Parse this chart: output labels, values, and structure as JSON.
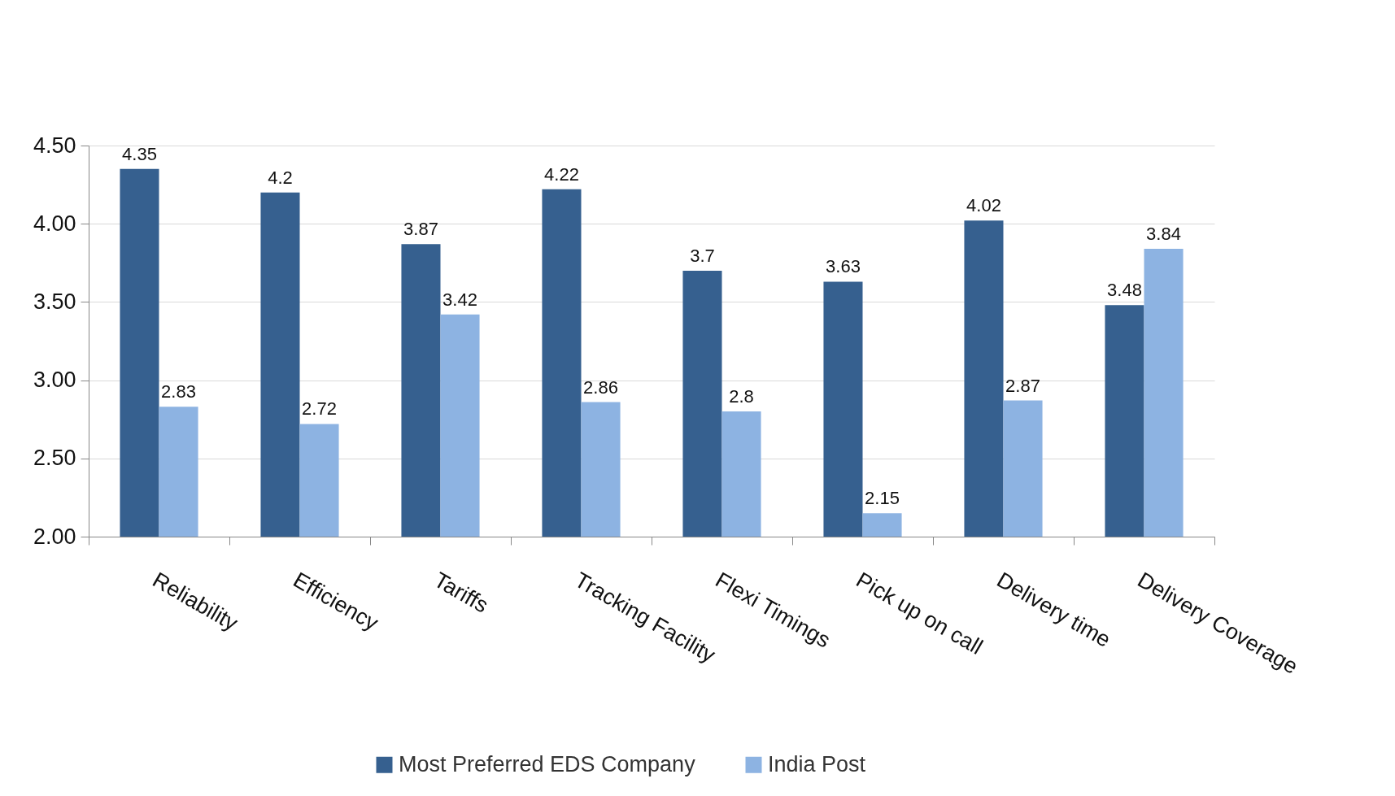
{
  "chart_data": {
    "type": "bar",
    "categories": [
      "Reliability",
      "Efficiency",
      "Tariffs",
      "Tracking Facility",
      "Flexi Timings",
      "Pick up on call",
      "Delivery time",
      "Delivery Coverage"
    ],
    "series": [
      {
        "name": "Most Preferred  EDS Company",
        "color": "#36608f",
        "values": [
          4.35,
          4.2,
          3.87,
          4.22,
          3.7,
          3.63,
          4.02,
          3.48
        ]
      },
      {
        "name": "India Post",
        "color": "#8db3e2",
        "values": [
          2.83,
          2.72,
          3.42,
          2.86,
          2.8,
          2.15,
          2.87,
          3.84
        ]
      }
    ],
    "ylim": [
      2,
      4.5
    ],
    "yticks": [
      {
        "value": 2,
        "label": "2.00"
      },
      {
        "value": 2.5,
        "label": "2.50"
      },
      {
        "value": 3,
        "label": "3.00"
      },
      {
        "value": 3.5,
        "label": "3.50"
      },
      {
        "value": 4,
        "label": "4.00"
      },
      {
        "value": 4.5,
        "label": "4.50"
      }
    ],
    "grid": "y",
    "legend": "bottom",
    "data_labels": true
  }
}
